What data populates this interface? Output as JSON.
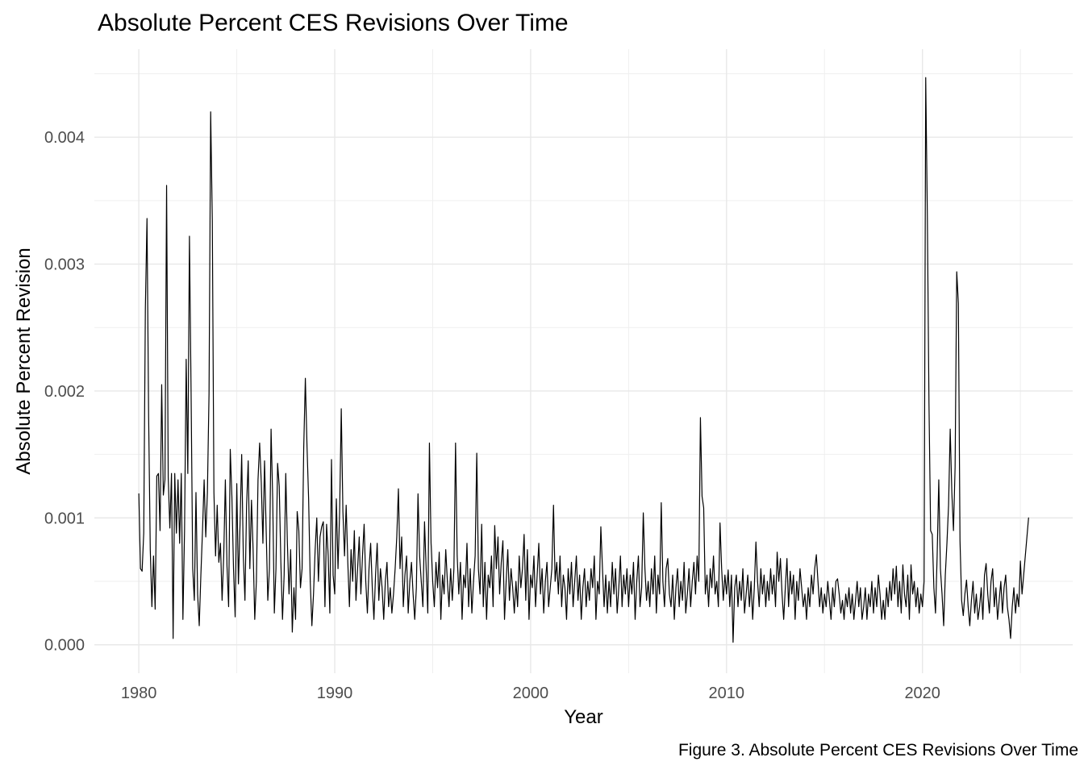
{
  "background": "#ffffff",
  "chart_data": {
    "type": "line",
    "title": "Absolute Percent CES Revisions Over Time",
    "caption": "Figure 3. Absolute Percent CES Revisions Over Time",
    "xlabel": "Year",
    "ylabel": "Absolute Percent Revision",
    "legend": "none",
    "grid": true,
    "line_color": "#000000",
    "grid_major_color": "#e8e8e8",
    "grid_minor_color": "#efefef",
    "tick_label_color": "#4d4d4d",
    "x_ticks": [
      1980,
      1990,
      2000,
      2010,
      2020
    ],
    "x_tick_labels": [
      "1980",
      "1990",
      "2000",
      "2010",
      "2020"
    ],
    "x_minor_ticks": [
      1985,
      1995,
      2005,
      2015,
      2025
    ],
    "y_ticks": [
      0,
      0.001,
      0.002,
      0.003,
      0.004
    ],
    "y_tick_labels": [
      "0.000",
      "0.001",
      "0.002",
      "0.003",
      "0.004"
    ],
    "y_minor_ticks": [
      0.0005,
      0.0015,
      0.0025,
      0.0035,
      0.0045
    ],
    "xlim": [
      1977.73,
      2027.67
    ],
    "ylim": [
      -0.000224,
      0.004694
    ],
    "series": [
      {
        "name": "absolute_percent_revision",
        "x_start": 1980.0,
        "x_step": 0.0833333,
        "values": [
          0.00119,
          0.0006,
          0.00058,
          0.00088,
          0.00265,
          0.00336,
          0.0018,
          0.00075,
          0.0003,
          0.0007,
          0.00028,
          0.00133,
          0.00135,
          0.0009,
          0.00205,
          0.00118,
          0.0013,
          0.00362,
          0.00132,
          0.00092,
          0.00135,
          5e-05,
          0.00135,
          0.00088,
          0.0013,
          0.0008,
          0.00135,
          0.0002,
          0.0009,
          0.00225,
          0.00135,
          0.00322,
          0.002,
          0.0006,
          0.00035,
          0.0012,
          0.0004,
          0.00015,
          0.00055,
          0.0009,
          0.0013,
          0.00085,
          0.0012,
          0.00198,
          0.0042,
          0.00335,
          0.0012,
          0.0007,
          0.0011,
          0.00065,
          0.0008,
          0.00035,
          0.0007,
          0.0013,
          0.00062,
          0.0003,
          0.00154,
          0.00117,
          0.0006,
          0.00022,
          0.00127,
          0.00048,
          0.00095,
          0.0015,
          0.0007,
          0.00035,
          0.0011,
          0.00145,
          0.0006,
          0.00114,
          0.00075,
          0.0002,
          0.0005,
          0.0013,
          0.00159,
          0.00128,
          0.0008,
          0.00145,
          0.0009,
          0.00035,
          0.0006,
          0.0017,
          0.00115,
          0.00025,
          0.0006,
          0.00143,
          0.00125,
          0.00065,
          0.0002,
          0.00055,
          0.00135,
          0.0008,
          0.0004,
          0.00075,
          0.0001,
          0.00045,
          0.0002,
          0.00105,
          0.0009,
          0.00045,
          0.0006,
          0.00155,
          0.0021,
          0.00157,
          0.00115,
          0.0005,
          0.00015,
          0.0004,
          0.00075,
          0.001,
          0.0005,
          0.00085,
          0.00093,
          0.00097,
          0.0003,
          0.00095,
          0.0007,
          0.00025,
          0.00146,
          0.00055,
          0.0004,
          0.00115,
          0.0006,
          0.00105,
          0.00186,
          0.00105,
          0.0007,
          0.0011,
          0.00065,
          0.0003,
          0.00075,
          0.0005,
          0.0009,
          0.00035,
          0.0006,
          0.00085,
          0.0004,
          0.0007,
          0.00095,
          0.0005,
          0.00025,
          0.0006,
          0.0008,
          0.00045,
          0.0002,
          0.00055,
          0.0008,
          0.00035,
          0.0006,
          0.00045,
          0.0002,
          0.0005,
          0.00065,
          0.0003,
          0.00045,
          0.00025,
          0.0004,
          0.0006,
          0.00085,
          0.00123,
          0.0006,
          0.00085,
          0.0003,
          0.00055,
          0.0007,
          0.00025,
          0.0005,
          0.00065,
          0.0004,
          0.0002,
          0.00045,
          0.00119,
          0.0007,
          0.0005,
          0.0003,
          0.00097,
          0.0006,
          0.00025,
          0.00159,
          0.0008,
          0.0005,
          0.0003,
          0.00065,
          0.00045,
          0.00073,
          0.0002,
          0.00055,
          0.0004,
          0.00075,
          0.0005,
          0.0003,
          0.0006,
          0.00035,
          0.0006,
          0.00159,
          0.0007,
          0.0004,
          0.00065,
          0.0002,
          0.00055,
          0.00045,
          0.0008,
          0.0003,
          0.0006,
          0.00025,
          0.0005,
          0.0007,
          0.00151,
          0.0006,
          0.0004,
          0.00095,
          0.0003,
          0.00065,
          0.0002,
          0.00055,
          0.00045,
          0.0007,
          0.0003,
          0.00094,
          0.0006,
          0.00085,
          0.0004,
          0.00065,
          0.00082,
          0.0002,
          0.0005,
          0.00075,
          0.00035,
          0.0006,
          0.00045,
          0.00025,
          0.0005,
          0.0003,
          0.0007,
          0.00045,
          0.0006,
          0.00087,
          0.00035,
          0.00075,
          0.0002,
          0.00055,
          0.00045,
          0.0007,
          0.0003,
          0.00055,
          0.0008,
          0.0004,
          0.0006,
          0.00025,
          0.0005,
          0.00065,
          0.0003,
          0.00045,
          0.0006,
          0.0011,
          0.0005,
          0.00065,
          0.0004,
          0.0007,
          0.0003,
          0.00055,
          0.00045,
          0.0002,
          0.0006,
          0.0004,
          0.00065,
          0.0003,
          0.0005,
          0.0007,
          0.00035,
          0.00055,
          0.0002,
          0.00045,
          0.0006,
          0.0003,
          0.0005,
          0.00035,
          0.0006,
          0.00045,
          0.0007,
          0.0002,
          0.0005,
          0.0004,
          0.00093,
          0.0006,
          0.0003,
          0.00055,
          0.00025,
          0.0005,
          0.0003,
          0.00065,
          0.0004,
          0.0006,
          0.00025,
          0.00045,
          0.0007,
          0.0003,
          0.00055,
          0.0004,
          0.0006,
          0.0003,
          0.00055,
          0.0004,
          0.00065,
          0.0002,
          0.0005,
          0.0007,
          0.0003,
          0.00045,
          0.00104,
          0.0006,
          0.00035,
          0.0005,
          0.0003,
          0.0006,
          0.0004,
          0.0007,
          0.00025,
          0.00055,
          0.0004,
          0.00112,
          0.0005,
          0.0003,
          0.0006,
          0.00068,
          0.0004,
          0.0003,
          0.00055,
          0.0002,
          0.00045,
          0.0006,
          0.0003,
          0.0005,
          0.00035,
          0.00065,
          0.00025,
          0.0004,
          0.0006,
          0.0003,
          0.0005,
          0.00065,
          0.0004,
          0.0007,
          0.0005,
          0.00179,
          0.00117,
          0.00108,
          0.0004,
          0.00055,
          0.0003,
          0.0006,
          0.00045,
          0.0007,
          0.0004,
          0.0005,
          0.0003,
          0.00096,
          0.0006,
          0.00035,
          0.00055,
          0.0004,
          0.00059,
          0.0003,
          0.00055,
          2e-05,
          0.00045,
          0.00055,
          0.0003,
          0.0005,
          0.00035,
          0.0006,
          0.00025,
          0.0004,
          0.00055,
          0.0003,
          0.0005,
          0.0002,
          0.00045,
          0.00081,
          0.0005,
          0.0003,
          0.0006,
          0.0004,
          0.00055,
          0.0003,
          0.0005,
          0.00035,
          0.0006,
          0.0004,
          0.00055,
          0.0003,
          0.00073,
          0.0005,
          0.00068,
          0.0004,
          0.0002,
          0.00045,
          0.00068,
          0.0003,
          0.00058,
          0.0004,
          0.00055,
          0.0002,
          0.0005,
          0.00035,
          0.0006,
          0.00045,
          0.0003,
          0.0004,
          0.0002,
          0.00045,
          0.0003,
          0.00055,
          0.0004,
          0.0006,
          0.00071,
          0.0005,
          0.0003,
          0.00045,
          0.00025,
          0.0004,
          0.0003,
          0.0005,
          0.00035,
          0.0002,
          0.00045,
          0.0003,
          0.0005,
          0.00052,
          0.0004,
          0.00025,
          0.00035,
          0.0002,
          0.0004,
          0.0003,
          0.00045,
          0.00025,
          0.0004,
          0.0002,
          0.00035,
          0.0005,
          0.0003,
          0.00045,
          0.0002,
          0.0003,
          0.00045,
          0.0002,
          0.0004,
          0.0003,
          0.0005,
          0.00025,
          0.00045,
          0.0003,
          0.00055,
          0.0004,
          0.0002,
          0.00035,
          0.0002,
          0.00045,
          0.0003,
          0.0005,
          0.00035,
          0.0006,
          0.0004,
          0.00062,
          0.0003,
          0.0005,
          0.00025,
          0.00063,
          0.0004,
          0.0003,
          0.00055,
          0.0002,
          0.00063,
          0.0004,
          0.0005,
          0.0003,
          0.00045,
          0.00025,
          0.0004,
          0.0003,
          0.0005,
          0.00447,
          0.00338,
          0.0019,
          0.0009,
          0.00087,
          0.00045,
          0.00025,
          0.0007,
          0.0013,
          0.0006,
          0.0004,
          0.00015,
          0.00055,
          0.0008,
          0.0011,
          0.0017,
          0.0012,
          0.0009,
          0.0014,
          0.00294,
          0.00269,
          0.00082,
          0.00035,
          0.00023,
          0.0004,
          0.00051,
          0.0003,
          0.00015,
          0.00035,
          0.0005,
          0.00025,
          0.0004,
          0.0002,
          0.0003,
          0.00045,
          0.0002,
          0.00055,
          0.00064,
          0.0004,
          0.00025,
          0.0005,
          0.0006,
          0.0003,
          0.00045,
          0.0002,
          0.00035,
          0.0005,
          0.00025,
          0.00045,
          0.00055,
          0.0003,
          0.0002,
          5e-05,
          0.0003,
          0.00045,
          0.00025,
          0.0004,
          0.0003,
          0.00066,
          0.0004,
          0.00055,
          0.0007,
          0.00085,
          0.001
        ]
      }
    ]
  }
}
